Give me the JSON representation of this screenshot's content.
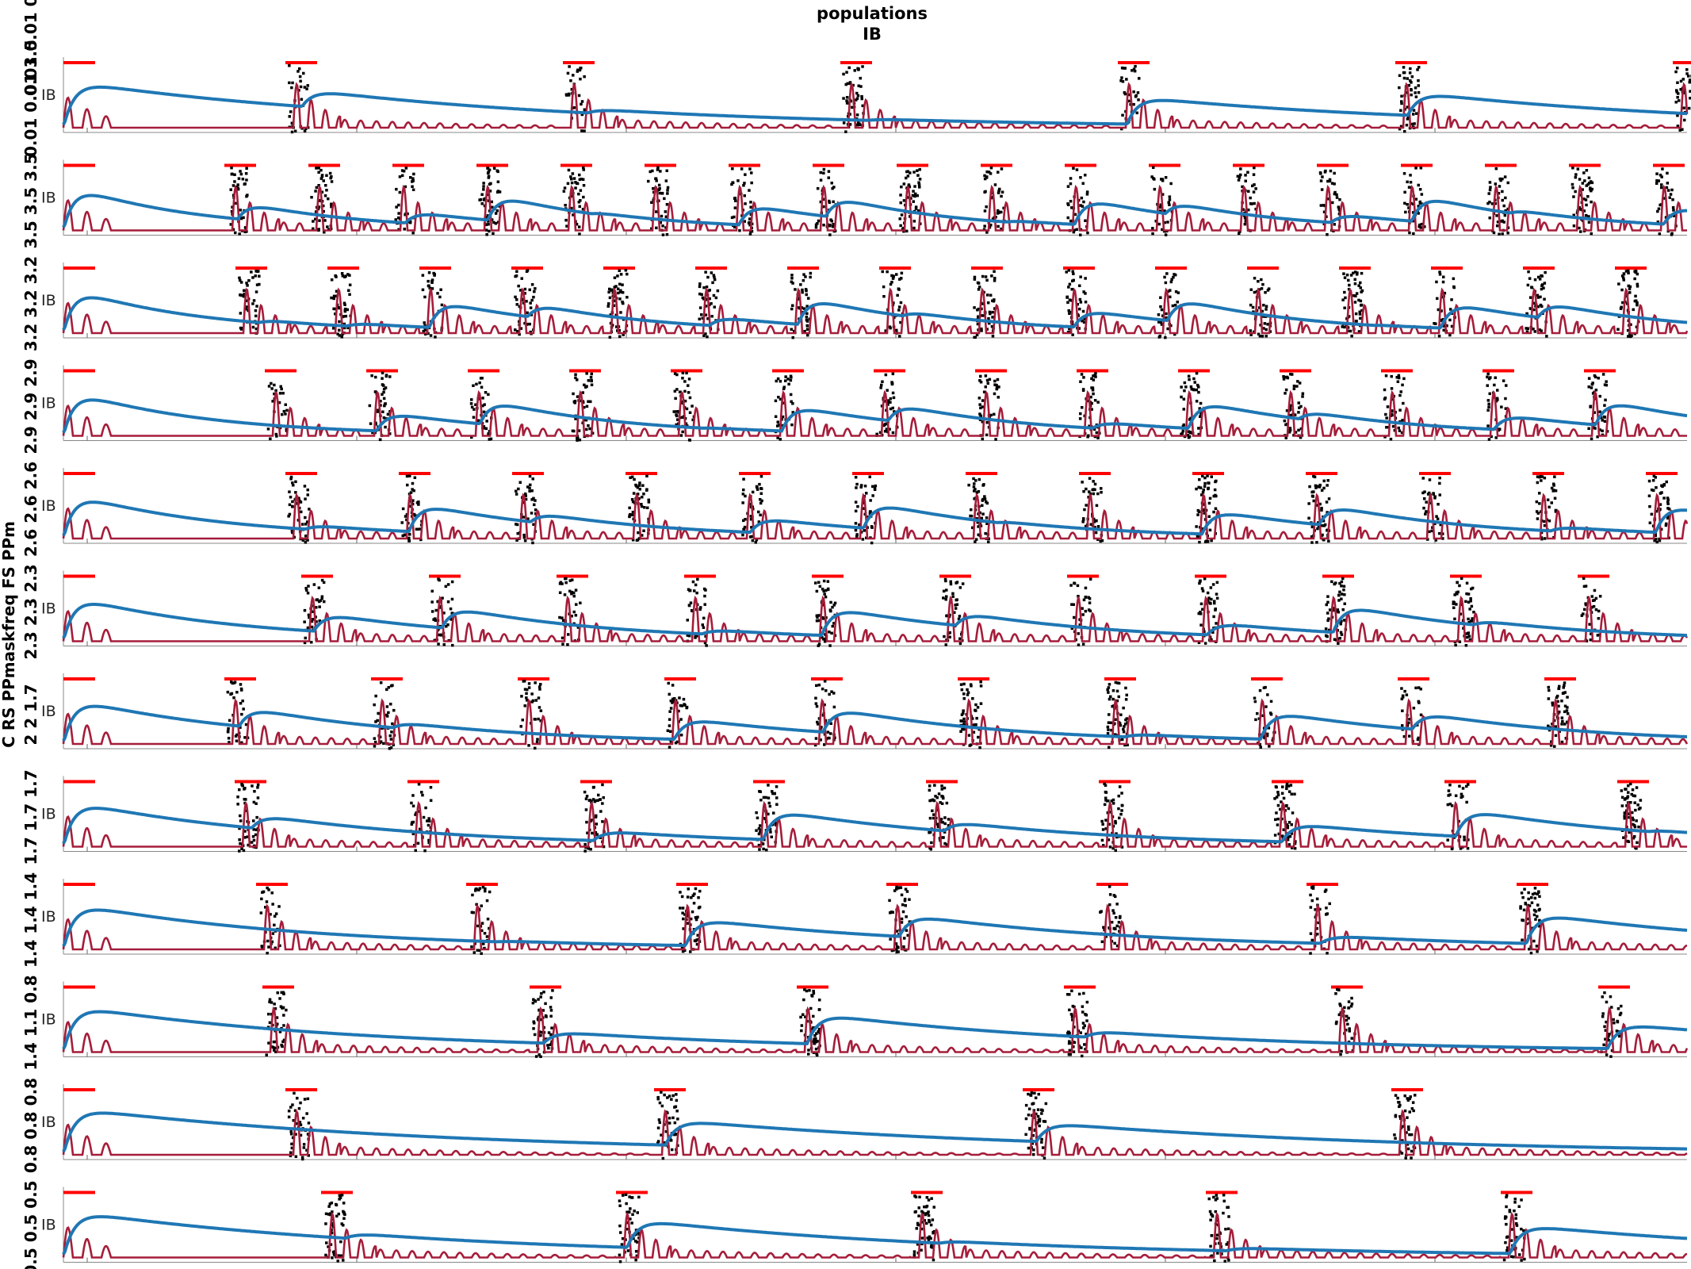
{
  "chart_data": {
    "type": "line",
    "title": [
      "populations",
      "IB"
    ],
    "ylabel": "C RS PPmaskfreq FS PPm",
    "legend": [],
    "panel_count": 12,
    "panels": [
      {
        "label": "IB",
        "left_label": "0.01 0.01 3.5"
      },
      {
        "label": "IB",
        "left_label": "3.5 3.5 3.5"
      },
      {
        "label": "IB",
        "left_label": "3.2 3.2 3.2"
      },
      {
        "label": "IB",
        "left_label": "2.9 2.9 2.9"
      },
      {
        "label": "IB",
        "left_label": "2.6 2.6 2.6"
      },
      {
        "label": "IB",
        "left_label": "2.3 2.3 2.3"
      },
      {
        "label": "IB",
        "left_label": "2 2 1.7"
      },
      {
        "label": "IB",
        "left_label": "1.7 1.7 1.7"
      },
      {
        "label": "IB",
        "left_label": "1.4 1.4 1.4"
      },
      {
        "label": "IB",
        "left_label": "1.4 1.1 0.8"
      },
      {
        "label": "IB",
        "left_label": "0.8 0.8 0.8"
      },
      {
        "label": "IB",
        "left_label": "0.5 0.5 0.5"
      }
    ],
    "series": [
      {
        "color": "#a51d3a",
        "kind": "fast oscillation"
      },
      {
        "color": "#1f77b4",
        "kind": "slow envelope"
      },
      {
        "color": "#ff0000",
        "kind": "stimulus bars"
      },
      {
        "color": "#000000",
        "kind": "spike raster"
      }
    ],
    "grid": false,
    "top_left_label": "0.01 0.01 0.01"
  }
}
